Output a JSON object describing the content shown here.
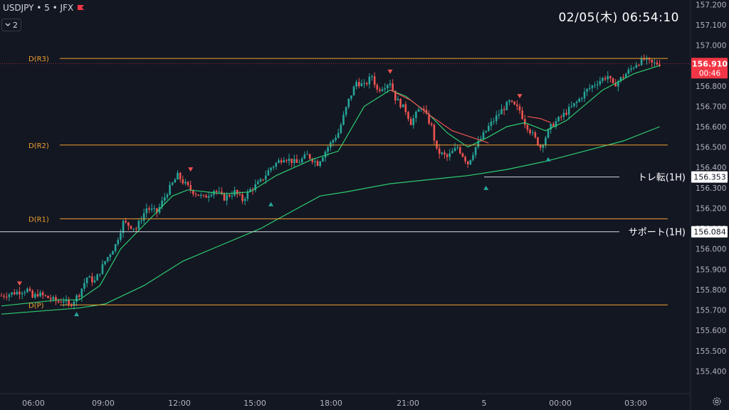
{
  "header": {
    "symbol": "USDJPY • 5 • JFX",
    "interval_count": "2",
    "datetime": "02/05(木)   06:54:10"
  },
  "colors": {
    "background": "#131722",
    "up": "#26a69a",
    "down": "#ef5350",
    "pivot_line": "#f0a030",
    "sma_fast": "#2ecc71",
    "sma_slow": "#2ecc71",
    "last_price": "#f23645",
    "white_line": "#d1d4dc"
  },
  "chart_data": {
    "type": "candlestick",
    "x_ticks": [
      "06:00",
      "09:00",
      "12:00",
      "15:00",
      "18:00",
      "21:00",
      "5",
      "00:00",
      "03:00",
      "06:00"
    ],
    "y_ticks": [
      157.2,
      157.1,
      157.0,
      156.9,
      156.8,
      156.7,
      156.6,
      156.5,
      156.4,
      156.3,
      156.2,
      156.1,
      156.0,
      155.9,
      155.8,
      155.7,
      155.6,
      155.5,
      155.4
    ],
    "ylim": [
      155.37,
      157.22
    ],
    "pivot_levels": [
      {
        "label": "D(R3)",
        "value": 156.935
      },
      {
        "label": "D(R2)",
        "value": 156.51
      },
      {
        "label": "D(R1)",
        "value": 156.148
      },
      {
        "label": "D(P)",
        "value": 155.725
      }
    ],
    "horizontal_lines": [
      {
        "label": "トレ転(1H)",
        "value": 156.353
      },
      {
        "label": "サポート(1H)",
        "value": 156.084
      }
    ],
    "last_price": {
      "value": "156.910",
      "countdown": "00:46"
    },
    "candle_path": [
      [
        0,
        155.77
      ],
      [
        10,
        155.8
      ],
      [
        12,
        155.76
      ],
      [
        14,
        155.78
      ],
      [
        22,
        155.74
      ],
      [
        24,
        155.75
      ],
      [
        26,
        155.72
      ],
      [
        28,
        155.75
      ],
      [
        30,
        155.78
      ],
      [
        33,
        155.86
      ],
      [
        36,
        155.84
      ],
      [
        40,
        155.94
      ],
      [
        44,
        156.02
      ],
      [
        47,
        156.13
      ],
      [
        52,
        156.1
      ],
      [
        56,
        156.2
      ],
      [
        60,
        156.18
      ],
      [
        64,
        156.28
      ],
      [
        68,
        156.36
      ],
      [
        70,
        156.33
      ],
      [
        73,
        156.29
      ],
      [
        78,
        156.25
      ],
      [
        82,
        156.29
      ],
      [
        86,
        156.25
      ],
      [
        90,
        156.28
      ],
      [
        93,
        156.24
      ],
      [
        96,
        156.29
      ],
      [
        100,
        156.33
      ],
      [
        104,
        156.4
      ],
      [
        109,
        156.45
      ],
      [
        114,
        156.42
      ],
      [
        118,
        156.46
      ],
      [
        122,
        156.42
      ],
      [
        126,
        156.5
      ],
      [
        130,
        156.57
      ],
      [
        132,
        156.65
      ],
      [
        134,
        156.73
      ],
      [
        137,
        156.82
      ],
      [
        140,
        156.8
      ],
      [
        143,
        156.85
      ],
      [
        145,
        156.78
      ],
      [
        150,
        156.82
      ],
      [
        152,
        156.74
      ],
      [
        156,
        156.68
      ],
      [
        158,
        156.62
      ],
      [
        162,
        156.7
      ],
      [
        166,
        156.6
      ],
      [
        168,
        156.48
      ],
      [
        172,
        156.45
      ],
      [
        176,
        156.5
      ],
      [
        180,
        156.42
      ],
      [
        183,
        156.5
      ],
      [
        188,
        156.6
      ],
      [
        193,
        156.68
      ],
      [
        196,
        156.72
      ],
      [
        200,
        156.68
      ],
      [
        202,
        156.62
      ],
      [
        205,
        156.56
      ],
      [
        208,
        156.5
      ],
      [
        212,
        156.6
      ],
      [
        217,
        156.66
      ],
      [
        222,
        156.72
      ],
      [
        226,
        156.78
      ],
      [
        230,
        156.82
      ],
      [
        234,
        156.85
      ],
      [
        236,
        156.8
      ],
      [
        241,
        156.86
      ],
      [
        245,
        156.91
      ],
      [
        248,
        156.93
      ],
      [
        251,
        156.91
      ],
      [
        254,
        156.91
      ]
    ],
    "sma_fast": [
      [
        0,
        155.72
      ],
      [
        22,
        155.75
      ],
      [
        30,
        155.75
      ],
      [
        38,
        155.82
      ],
      [
        46,
        156.0
      ],
      [
        56,
        156.13
      ],
      [
        66,
        156.26
      ],
      [
        72,
        156.29
      ],
      [
        86,
        156.27
      ],
      [
        96,
        156.28
      ],
      [
        106,
        156.36
      ],
      [
        120,
        156.44
      ],
      [
        130,
        156.48
      ],
      [
        140,
        156.7
      ],
      [
        150,
        156.78
      ],
      [
        156,
        156.75
      ],
      [
        165,
        156.66
      ],
      [
        172,
        156.57
      ],
      [
        180,
        156.5
      ],
      [
        188,
        156.55
      ],
      [
        195,
        156.6
      ],
      [
        202,
        156.62
      ],
      [
        210,
        156.58
      ],
      [
        218,
        156.63
      ],
      [
        232,
        156.78
      ],
      [
        244,
        156.86
      ],
      [
        254,
        156.9
      ]
    ],
    "sma_slow": [
      [
        0,
        155.68
      ],
      [
        30,
        155.71
      ],
      [
        40,
        155.73
      ],
      [
        55,
        155.82
      ],
      [
        70,
        155.94
      ],
      [
        85,
        156.02
      ],
      [
        100,
        156.1
      ],
      [
        110,
        156.17
      ],
      [
        123,
        156.26
      ],
      [
        133,
        156.28
      ],
      [
        150,
        156.32
      ],
      [
        165,
        156.34
      ],
      [
        180,
        156.36
      ],
      [
        195,
        156.39
      ],
      [
        210,
        156.43
      ],
      [
        225,
        156.48
      ],
      [
        240,
        156.53
      ],
      [
        254,
        156.6
      ]
    ],
    "red_segment": [
      [
        150,
        156.78
      ],
      [
        158,
        156.73
      ],
      [
        166,
        156.65
      ],
      [
        174,
        156.58
      ],
      [
        188,
        156.52
      ]
    ],
    "red_segment2": [
      [
        203,
        156.65
      ],
      [
        208,
        156.64
      ],
      [
        212,
        156.62
      ]
    ],
    "markers_down": [
      [
        7,
        155.83
      ],
      [
        150,
        156.87
      ],
      [
        73,
        156.39
      ],
      [
        200,
        156.75
      ]
    ],
    "markers_up": [
      [
        29,
        155.68
      ],
      [
        104,
        156.22
      ],
      [
        187,
        156.3
      ],
      [
        211,
        156.44
      ]
    ]
  }
}
